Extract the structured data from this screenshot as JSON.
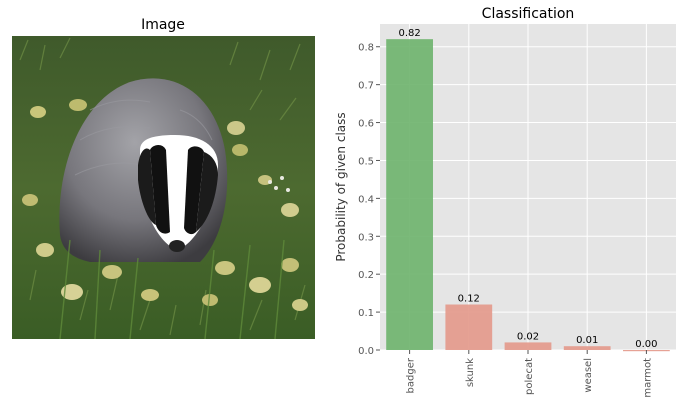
{
  "left_panel": {
    "title": "Image",
    "image_subject": "badger-in-grass"
  },
  "chart_data": {
    "type": "bar",
    "title": "Classification",
    "xlabel": "",
    "ylabel": "Probability of given class",
    "categories": [
      "badger",
      "skunk",
      "polecat",
      "weasel",
      "marmot"
    ],
    "values": [
      0.82,
      0.12,
      0.02,
      0.01,
      0.0
    ],
    "value_labels": [
      "0.82",
      "0.12",
      "0.02",
      "0.01",
      "0.00"
    ],
    "ylim": [
      0,
      0.86
    ],
    "yticks": [
      0.0,
      0.1,
      0.2,
      0.3,
      0.4,
      0.5,
      0.6,
      0.7,
      0.8
    ],
    "ytick_labels": [
      "0.0",
      "0.1",
      "0.2",
      "0.3",
      "0.4",
      "0.5",
      "0.6",
      "0.7",
      "0.8"
    ],
    "grid": true,
    "highlight_index": 0,
    "colors": {
      "highlight": "#6db36b",
      "other": "#e3988a",
      "background": "#e5e5e5",
      "grid": "#ffffff",
      "tick_text": "#555555"
    }
  }
}
